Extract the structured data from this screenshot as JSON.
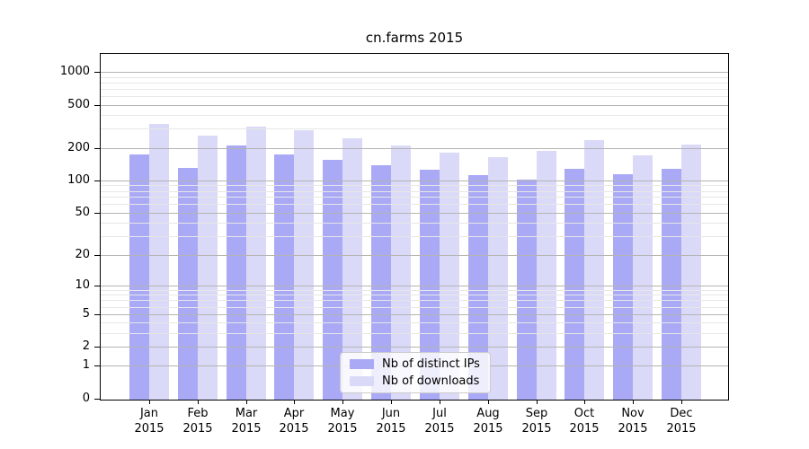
{
  "title": "cn.farms 2015",
  "colors": {
    "ips_bar": "#a9a9f5",
    "downloads_bar": "#dadaf8",
    "grid_major": "#b4b4b4",
    "grid_minor": "#e7e7e7",
    "axis": "#000000",
    "legend_border": "#cccccc"
  },
  "chart_data": {
    "type": "bar",
    "title": "cn.farms 2015",
    "categories": [
      "Jan",
      "Feb",
      "Mar",
      "Apr",
      "May",
      "Jun",
      "Jul",
      "Aug",
      "Sep",
      "Oct",
      "Nov",
      "Dec"
    ],
    "x_year_label": "2015",
    "series": [
      {
        "name": "Nb of distinct IPs",
        "color": "#a9a9f5",
        "values": [
          178,
          133,
          213,
          176,
          157,
          142,
          128,
          114,
          104,
          130,
          117,
          131
        ]
      },
      {
        "name": "Nb of downloads",
        "color": "#dadaf8",
        "values": [
          339,
          264,
          319,
          298,
          248,
          215,
          184,
          168,
          192,
          240,
          175,
          218
        ]
      }
    ],
    "y_scale": "log1p",
    "ylim": [
      0,
      1465
    ],
    "y_ticks": [
      0,
      1,
      2,
      5,
      10,
      20,
      50,
      100,
      200,
      500,
      1000
    ],
    "y_minor_ticks": [
      3,
      4,
      6,
      7,
      8,
      9,
      30,
      40,
      60,
      70,
      80,
      90,
      300,
      400,
      600,
      700,
      800,
      900
    ],
    "grid": "both",
    "legend_position": "lower center"
  }
}
